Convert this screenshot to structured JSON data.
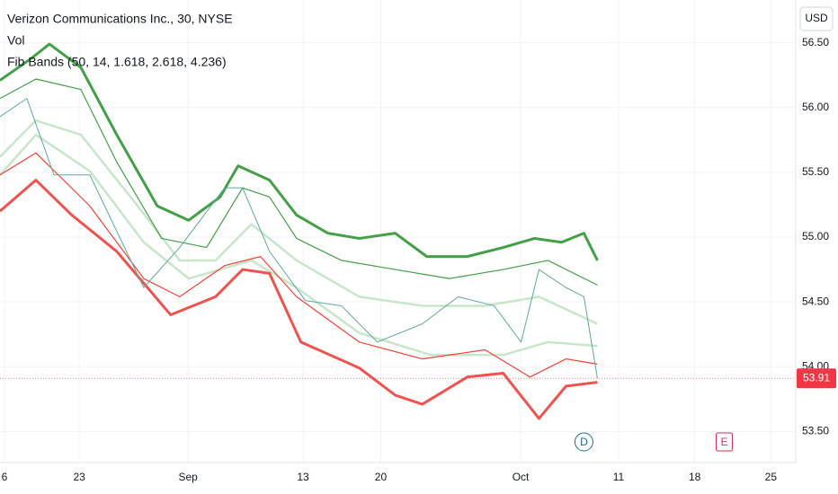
{
  "chart_data": {
    "type": "line",
    "title": "Verizon Communications Inc., 30, NYSE",
    "legend_items": [
      "Vol",
      "Fib Bands (50, 14, 1.618, 2.618, 4.236)"
    ],
    "currency": "USD",
    "xlim": [
      0,
      51.2
    ],
    "xticks": [
      {
        "value": 0.29,
        "label": "6"
      },
      {
        "value": 5.1,
        "label": "23"
      },
      {
        "value": 12.1,
        "label": "Sep"
      },
      {
        "value": 19.5,
        "label": "13"
      },
      {
        "value": 24.5,
        "label": "20"
      },
      {
        "value": 33.5,
        "label": "Oct"
      },
      {
        "value": 39.8,
        "label": "11"
      },
      {
        "value": 44.7,
        "label": "18"
      },
      {
        "value": 49.6,
        "label": "25"
      }
    ],
    "ylim": [
      53.26,
      56.83
    ],
    "yticks": [
      {
        "value": 53.5,
        "label": "53.50"
      },
      {
        "value": 54,
        "label": "54.00"
      },
      {
        "value": 54.5,
        "label": "54.50"
      },
      {
        "value": 55,
        "label": "55.00"
      },
      {
        "value": 55.5,
        "label": "55.50"
      },
      {
        "value": 56,
        "label": "56.00"
      },
      {
        "value": 56.5,
        "label": "56.50"
      }
    ],
    "grid": true,
    "series": [
      {
        "color": "#c8e6c9",
        "width": 2.5,
        "x": [
          0,
          2.31,
          5.78,
          9.25,
          12.14,
          16.18,
          19.08,
          23.12,
          27.75,
          32.37,
          35.26,
          38.44
        ],
        "values": [
          55.48,
          55.79,
          55.51,
          54.96,
          54.68,
          54.82,
          54.61,
          54.26,
          54.09,
          54.09,
          54.19,
          54.16
        ]
      },
      {
        "color": "#c8e6c9",
        "width": 2.5,
        "x": [
          0,
          2.31,
          5.2,
          8.67,
          11.56,
          13.87,
          16.18,
          19.08,
          23.12,
          27.17,
          31.21,
          34.68,
          38.44
        ],
        "values": [
          55.62,
          55.9,
          55.79,
          55.27,
          54.82,
          54.82,
          55.1,
          54.82,
          54.54,
          54.47,
          54.47,
          54.54,
          54.33
        ]
      },
      {
        "color": "#43a047",
        "width": 1.2,
        "x": [
          0,
          2.31,
          5.2,
          7.51,
          10.4,
          13.29,
          15.61,
          17.34,
          19.08,
          21.97,
          25.43,
          28.9,
          32.37,
          35.26,
          38.44
        ],
        "values": [
          56.07,
          56.22,
          56.14,
          55.58,
          54.99,
          54.92,
          55.38,
          55.31,
          54.99,
          54.82,
          54.75,
          54.68,
          54.75,
          54.82,
          54.63
        ]
      },
      {
        "color": "#43a047",
        "width": 3,
        "x": [
          0,
          2.02,
          3.18,
          5.2,
          7.51,
          10.12,
          12.14,
          14.16,
          15.32,
          17.34,
          19.08,
          21.1,
          23.12,
          25.43,
          27.46,
          30.06,
          32.37,
          34.39,
          36.13,
          37.57,
          38.44
        ],
        "values": [
          56.21,
          56.38,
          56.49,
          56.31,
          55.79,
          55.24,
          55.13,
          55.31,
          55.55,
          55.44,
          55.17,
          55.03,
          54.99,
          55.03,
          54.85,
          54.85,
          54.92,
          54.99,
          54.96,
          55.03,
          54.82
        ]
      },
      {
        "color": "#f44336",
        "width": 1.2,
        "x": [
          0,
          2.31,
          5.78,
          9.25,
          11.56,
          14.45,
          16.76,
          19.08,
          23.12,
          27.17,
          31.21,
          34.1,
          36.42,
          38.44
        ],
        "values": [
          55.48,
          55.65,
          55.24,
          54.68,
          54.54,
          54.78,
          54.85,
          54.54,
          54.19,
          54.06,
          54.13,
          53.92,
          54.06,
          54.02
        ]
      },
      {
        "color": "#ef5350",
        "width": 3,
        "x": [
          0,
          2.31,
          4.62,
          7.51,
          10.98,
          13.87,
          15.61,
          17.34,
          19.36,
          23.12,
          25.43,
          27.17,
          30.06,
          32.37,
          34.68,
          36.42,
          38.44
        ],
        "values": [
          55.2,
          55.44,
          55.17,
          54.89,
          54.4,
          54.54,
          54.75,
          54.72,
          54.19,
          53.99,
          53.78,
          53.71,
          53.92,
          53.95,
          53.6,
          53.85,
          53.88
        ]
      },
      {
        "color": "#5fa89d",
        "width": 1,
        "x": [
          0,
          1.73,
          3.47,
          5.78,
          9.25,
          11.56,
          14.45,
          15.61,
          17.34,
          19.65,
          21.97,
          24.28,
          27.17,
          29.48,
          31.79,
          33.53,
          34.68,
          36.42,
          37.57,
          38.44
        ],
        "values": [
          55.93,
          56.07,
          55.48,
          55.48,
          54.61,
          54.92,
          55.38,
          55.38,
          54.89,
          54.51,
          54.47,
          54.19,
          54.33,
          54.54,
          54.47,
          54.19,
          54.75,
          54.61,
          54.54,
          53.91
        ]
      }
    ],
    "last_price": 53.91,
    "last_price_color": "#f23645",
    "events": [
      {
        "label": "D",
        "x": 37.57,
        "color": "#1e6f8a"
      },
      {
        "label": "E",
        "x": 46.6,
        "color": "#d32f4f"
      }
    ]
  }
}
